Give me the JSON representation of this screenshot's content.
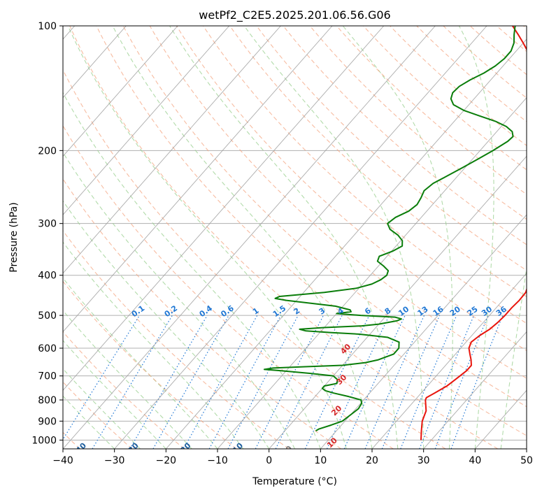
{
  "chart_data": {
    "type": "line",
    "title": "wetPf2_C2E5.2025.201.06.56.G06",
    "xlabel": "Temperature (°C)",
    "ylabel": "Pressure (hPa)",
    "xlim": [
      -40,
      50
    ],
    "ylim": [
      1050,
      100
    ],
    "y_scale": "log",
    "skew": true,
    "grid": true,
    "x_ticks": [
      -40,
      -30,
      -20,
      -10,
      0,
      10,
      20,
      30,
      40,
      50
    ],
    "y_ticks": [
      100,
      200,
      300,
      400,
      500,
      600,
      700,
      800,
      900,
      1000
    ],
    "dry_adiabat_labels": [
      -100,
      -90,
      -80,
      -70,
      -60,
      -50,
      -40,
      -30,
      -20,
      -10,
      0,
      10,
      20,
      30,
      40
    ],
    "mixing_ratio_labels": [
      "0.1",
      "0.2",
      "0.4",
      "0.6",
      "1",
      "1.5",
      "2",
      "3",
      "4",
      "6",
      "8",
      "10",
      "13",
      "16",
      "20",
      "25",
      "30",
      "36"
    ],
    "colors": {
      "temperature": "#e8140c",
      "dewpoint": "#0a7d0a",
      "dry_adiabat": "#f4a582",
      "moist_adiabat": "#98cf8e",
      "mixing_ratio": "#1f77d4",
      "isotherm": "#9e9e9e",
      "adiabat_label_cold": "#1f5f9e",
      "adiabat_label_warm": "#d62728"
    },
    "series": [
      {
        "points": [
          [
            1000,
            28
          ],
          [
            950,
            26.5
          ],
          [
            900,
            25
          ],
          [
            850,
            24
          ],
          [
            800,
            22
          ],
          [
            790,
            21.8
          ],
          [
            770,
            22.6
          ],
          [
            740,
            23.8
          ],
          [
            720,
            24.2
          ],
          [
            700,
            24.6
          ],
          [
            680,
            25
          ],
          [
            660,
            25
          ],
          [
            640,
            24
          ],
          [
            620,
            22.8
          ],
          [
            600,
            21.6
          ],
          [
            580,
            21
          ],
          [
            560,
            21.5
          ],
          [
            540,
            22.4
          ],
          [
            520,
            22.8
          ],
          [
            500,
            23
          ],
          [
            480,
            23
          ],
          [
            460,
            23.2
          ],
          [
            440,
            23.1
          ],
          [
            420,
            22.2
          ],
          [
            400,
            20.7
          ],
          [
            380,
            19.3
          ],
          [
            360,
            17.8
          ],
          [
            340,
            16.5
          ],
          [
            320,
            15.3
          ],
          [
            300,
            14.1
          ],
          [
            290,
            13.3
          ],
          [
            280,
            12.7
          ],
          [
            270,
            12
          ],
          [
            260,
            11
          ],
          [
            250,
            9.9
          ],
          [
            240,
            8.5
          ],
          [
            230,
            7
          ],
          [
            220,
            5.4
          ],
          [
            210,
            3.6
          ],
          [
            200,
            1.8
          ],
          [
            190,
            -0.2
          ],
          [
            180,
            -2.4
          ],
          [
            170,
            -4.2
          ],
          [
            160,
            -6
          ],
          [
            150,
            -8
          ],
          [
            140,
            -10.3
          ],
          [
            130,
            -12.8
          ],
          [
            120,
            -15.8
          ],
          [
            115,
            -17.8
          ],
          [
            110,
            -20
          ],
          [
            105,
            -22.4
          ],
          [
            100,
            -25
          ]
        ]
      },
      {
        "points": [
          [
            950,
            6
          ],
          [
            940,
            6.3
          ],
          [
            920,
            8
          ],
          [
            900,
            9.5
          ],
          [
            870,
            10
          ],
          [
            840,
            10.5
          ],
          [
            815,
            10.2
          ],
          [
            800,
            9.5
          ],
          [
            785,
            6.5
          ],
          [
            770,
            3
          ],
          [
            760,
            1
          ],
          [
            750,
            0
          ],
          [
            740,
            0
          ],
          [
            730,
            2
          ],
          [
            715,
            1.5
          ],
          [
            700,
            0
          ],
          [
            690,
            -5
          ],
          [
            680,
            -11
          ],
          [
            675,
            -14.5
          ],
          [
            670,
            -13
          ],
          [
            665,
            -7
          ],
          [
            660,
            0
          ],
          [
            650,
            4
          ],
          [
            640,
            6
          ],
          [
            620,
            8
          ],
          [
            600,
            8
          ],
          [
            580,
            7
          ],
          [
            565,
            4
          ],
          [
            555,
            -2
          ],
          [
            550,
            -8
          ],
          [
            545,
            -13
          ],
          [
            540,
            -14.5
          ],
          [
            535,
            -10
          ],
          [
            530,
            -3
          ],
          [
            525,
            0
          ],
          [
            515,
            3
          ],
          [
            510,
            3.5
          ],
          [
            505,
            2
          ],
          [
            500,
            -5
          ],
          [
            495,
            -10
          ],
          [
            490,
            -7.5
          ],
          [
            485,
            -8
          ],
          [
            475,
            -11.5
          ],
          [
            470,
            -15
          ],
          [
            460,
            -22
          ],
          [
            455,
            -24.5
          ],
          [
            450,
            -24
          ],
          [
            440,
            -16
          ],
          [
            430,
            -10.5
          ],
          [
            420,
            -8.2
          ],
          [
            410,
            -7.2
          ],
          [
            400,
            -6.8
          ],
          [
            390,
            -7.3
          ],
          [
            380,
            -9
          ],
          [
            370,
            -11
          ],
          [
            360,
            -11.5
          ],
          [
            350,
            -9.8
          ],
          [
            340,
            -8.8
          ],
          [
            330,
            -9.7
          ],
          [
            320,
            -11.5
          ],
          [
            310,
            -14
          ],
          [
            300,
            -15.5
          ],
          [
            290,
            -15
          ],
          [
            280,
            -13.5
          ],
          [
            270,
            -13
          ],
          [
            260,
            -13.4
          ],
          [
            250,
            -14
          ],
          [
            240,
            -13.5
          ],
          [
            230,
            -12
          ],
          [
            220,
            -10.5
          ],
          [
            210,
            -9
          ],
          [
            200,
            -7.5
          ],
          [
            190,
            -6.2
          ],
          [
            185,
            -6
          ],
          [
            180,
            -7
          ],
          [
            175,
            -9
          ],
          [
            170,
            -12
          ],
          [
            165,
            -16
          ],
          [
            160,
            -20
          ],
          [
            155,
            -23
          ],
          [
            150,
            -24.5
          ],
          [
            145,
            -25.2
          ],
          [
            140,
            -25
          ],
          [
            135,
            -24
          ],
          [
            130,
            -22.5
          ],
          [
            125,
            -21.5
          ],
          [
            120,
            -21
          ],
          [
            115,
            -21
          ],
          [
            110,
            -21.8
          ],
          [
            105,
            -23.2
          ],
          [
            100,
            -24.5
          ]
        ]
      }
    ]
  }
}
